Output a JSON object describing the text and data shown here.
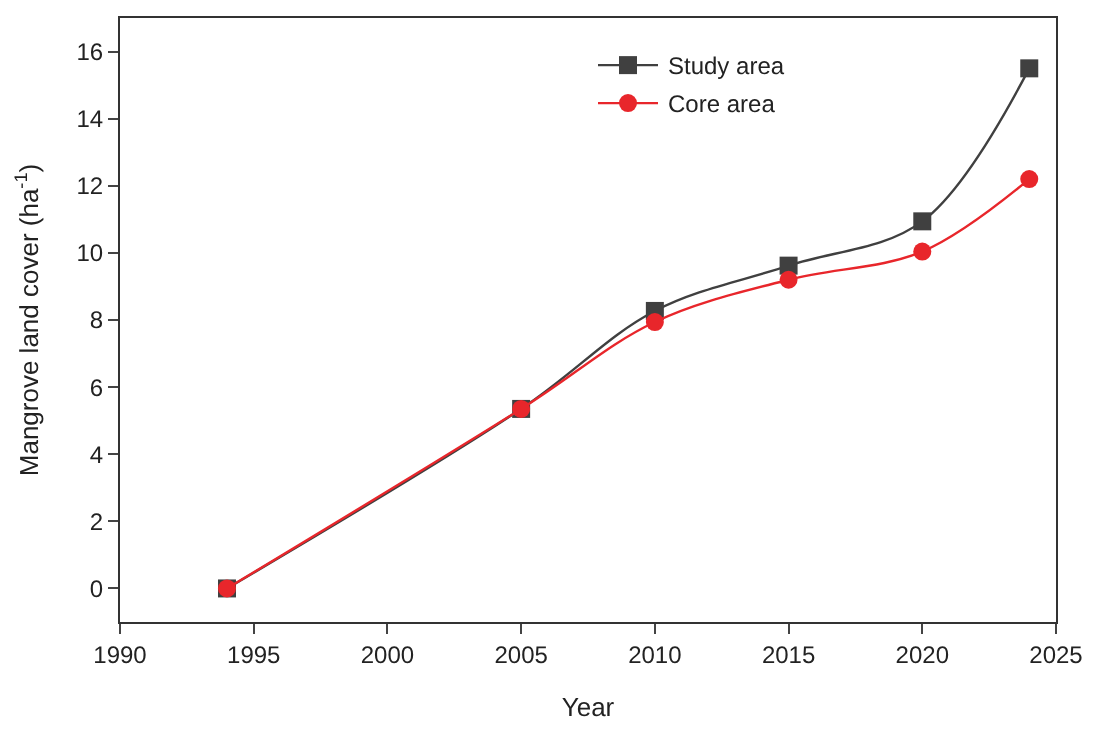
{
  "chart_data": {
    "type": "line",
    "xlabel": "Year",
    "ylabel": "Mangrove land cover (ha$^{-1}$)",
    "x": [
      1994,
      2005,
      2010,
      2015,
      2020,
      2024
    ],
    "series": [
      {
        "name": "Study area",
        "color": "#404040",
        "marker": "square",
        "values": [
          0,
          5.35,
          8.27,
          9.62,
          10.94,
          15.5
        ]
      },
      {
        "name": "Core area",
        "color": "#e8262b",
        "marker": "circle",
        "values": [
          0,
          5.35,
          7.94,
          9.2,
          10.04,
          12.2
        ]
      }
    ],
    "xlim": [
      1990,
      2025
    ],
    "xticks": [
      1990,
      1995,
      2000,
      2005,
      2010,
      2015,
      2020,
      2025
    ],
    "ylim": [
      -1,
      17
    ],
    "yticks": [
      0,
      2,
      4,
      6,
      8,
      10,
      12,
      14,
      16
    ],
    "legend": "top",
    "line_style": "solid"
  }
}
